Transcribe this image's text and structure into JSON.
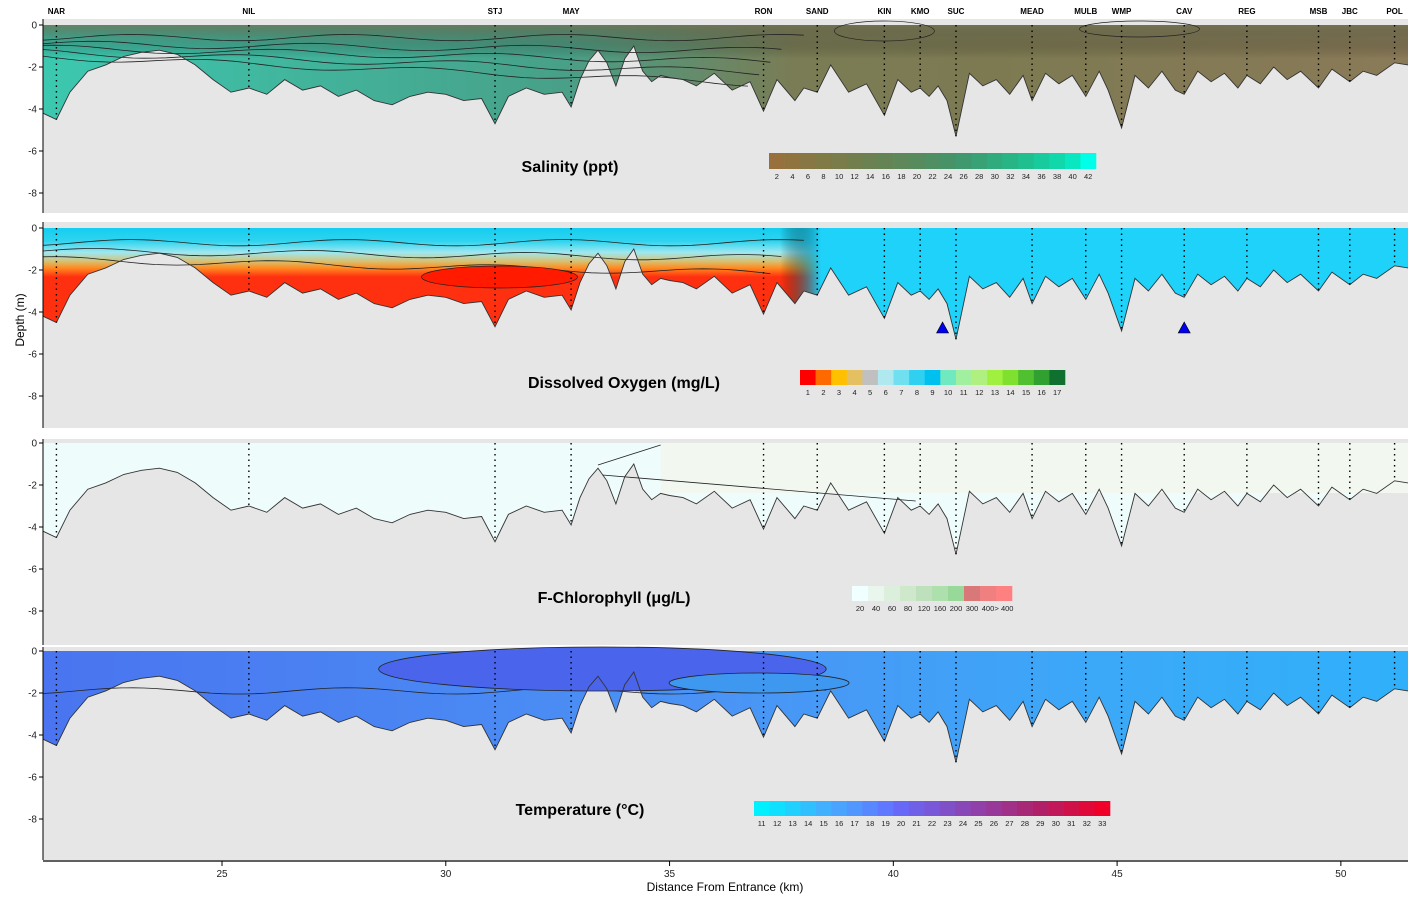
{
  "chart_data": {
    "type": "area",
    "description_free": true,
    "stations": [
      {
        "name": "NAR",
        "km": 21.3
      },
      {
        "name": "NIL",
        "km": 25.6
      },
      {
        "name": "STJ",
        "km": 31.1
      },
      {
        "name": "MAY",
        "km": 32.8
      },
      {
        "name": "RON",
        "km": 37.1
      },
      {
        "name": "SAND",
        "km": 38.3
      },
      {
        "name": "KIN",
        "km": 39.8
      },
      {
        "name": "KMO",
        "km": 40.6
      },
      {
        "name": "SUC",
        "km": 41.4
      },
      {
        "name": "MEAD",
        "km": 43.1
      },
      {
        "name": "MULB",
        "km": 44.3
      },
      {
        "name": "WMP",
        "km": 45.1
      },
      {
        "name": "CAV",
        "km": 46.5
      },
      {
        "name": "REG",
        "km": 47.9
      },
      {
        "name": "MSB",
        "km": 49.5
      },
      {
        "name": "JBC",
        "km": 50.2
      },
      {
        "name": "POL",
        "km": 51.2
      }
    ],
    "x_axis": {
      "label": "Distance From Entrance (km)",
      "range": [
        21,
        51.5
      ],
      "ticks": [
        25,
        30,
        35,
        40,
        45,
        50
      ]
    },
    "y_axis": {
      "label": "Depth (m)",
      "range": [
        -9.2,
        0
      ],
      "ticks": [
        "0",
        "-2",
        "-4",
        "-6",
        "-8"
      ]
    },
    "bottom_profile": {
      "x": [
        21.0,
        21.3,
        21.6,
        22.0,
        22.4,
        22.8,
        23.2,
        23.6,
        24.0,
        24.4,
        24.8,
        25.2,
        25.6,
        26.0,
        26.4,
        26.8,
        27.2,
        27.6,
        28.0,
        28.4,
        28.8,
        29.2,
        29.6,
        30.0,
        30.4,
        30.8,
        31.1,
        31.4,
        31.8,
        32.2,
        32.6,
        32.8,
        33.0,
        33.2,
        33.4,
        33.6,
        33.8,
        34.0,
        34.2,
        34.4,
        34.6,
        34.8,
        35.0,
        35.3,
        35.6,
        36.0,
        36.4,
        36.8,
        37.1,
        37.4,
        37.8,
        38.0,
        38.3,
        38.6,
        39.0,
        39.4,
        39.8,
        40.1,
        40.4,
        40.6,
        40.8,
        41.0,
        41.2,
        41.4,
        41.7,
        42.0,
        42.3,
        42.6,
        42.9,
        43.1,
        43.4,
        43.7,
        44.0,
        44.3,
        44.6,
        44.8,
        45.1,
        45.4,
        45.7,
        46.0,
        46.3,
        46.5,
        46.8,
        47.1,
        47.4,
        47.7,
        47.9,
        48.2,
        48.5,
        48.8,
        49.1,
        49.5,
        49.8,
        50.2,
        50.5,
        50.8,
        51.2,
        51.5
      ],
      "depth": [
        -4.2,
        -4.5,
        -3.2,
        -2.2,
        -1.9,
        -1.5,
        -1.3,
        -1.2,
        -1.4,
        -1.9,
        -2.6,
        -3.2,
        -3.0,
        -3.3,
        -2.6,
        -3.1,
        -2.9,
        -3.4,
        -3.1,
        -3.6,
        -3.8,
        -3.4,
        -3.2,
        -3.3,
        -3.6,
        -3.5,
        -4.7,
        -3.4,
        -3.0,
        -3.3,
        -3.2,
        -3.9,
        -2.6,
        -1.7,
        -1.2,
        -1.8,
        -2.9,
        -1.6,
        -1.0,
        -2.2,
        -2.7,
        -2.4,
        -2.5,
        -2.6,
        -2.9,
        -2.3,
        -3.1,
        -2.7,
        -4.1,
        -2.6,
        -3.6,
        -3.0,
        -3.2,
        -1.9,
        -3.2,
        -2.8,
        -4.3,
        -2.6,
        -3.2,
        -3.0,
        -3.4,
        -2.9,
        -3.6,
        -5.3,
        -2.3,
        -2.9,
        -2.6,
        -3.3,
        -2.4,
        -3.6,
        -2.3,
        -2.8,
        -2.4,
        -3.4,
        -2.2,
        -3.1,
        -4.9,
        -2.4,
        -3.0,
        -2.2,
        -3.1,
        -3.3,
        -2.2,
        -2.7,
        -2.3,
        -3.0,
        -2.4,
        -2.8,
        -2.0,
        -2.6,
        -2.2,
        -3.0,
        -2.1,
        -2.7,
        -2.2,
        -2.4,
        -1.8,
        -1.9
      ]
    },
    "panels": [
      {
        "title": "Salinity (ppt)",
        "legend_labels": [
          "2",
          "4",
          "6",
          "8",
          "10",
          "12",
          "14",
          "16",
          "18",
          "20",
          "22",
          "24",
          "26",
          "28",
          "30",
          "32",
          "34",
          "36",
          "38",
          "40",
          "42"
        ],
        "colors": [
          "#98703d",
          "#8f7440",
          "#877744",
          "#807a47",
          "#7a7c4a",
          "#737e4d",
          "#6c8151",
          "#658456",
          "#5e885a",
          "#578b5e",
          "#508e63",
          "#489268",
          "#40986e",
          "#38a176",
          "#30ab7e",
          "#28b586",
          "#20bf8f",
          "#18cb9c",
          "#10d8ab",
          "#08e7c0",
          "#00ffe8"
        ]
      },
      {
        "title": "Dissolved Oxygen (mg/L)",
        "legend_labels": [
          "1",
          "2",
          "3",
          "4",
          "5",
          "6",
          "7",
          "8",
          "9",
          "10",
          "11",
          "12",
          "13",
          "14",
          "15",
          "16",
          "17"
        ],
        "colors": [
          "#ff0000",
          "#ff6a00",
          "#ffc000",
          "#e4c060",
          "#c0c0c0",
          "#b0e8f0",
          "#70e0f0",
          "#30d0f0",
          "#00c0f0",
          "#70e8c0",
          "#a0f0a0",
          "#b0f080",
          "#a0f040",
          "#80e030",
          "#50c030",
          "#30a030",
          "#107030"
        ],
        "markers_km": [
          41.1,
          46.5
        ]
      },
      {
        "title": "F-Chlorophyll (μg/L)",
        "legend_labels": [
          "20",
          "40",
          "60",
          "80",
          "120",
          "160",
          "200",
          "300",
          "400",
          "> 400"
        ],
        "colors": [
          "#f0ffff",
          "#e8f6ee",
          "#dcefdc",
          "#cfe8cc",
          "#bee0bc",
          "#ade0ad",
          "#98d898",
          "#d87878",
          "#f08080",
          "#ff8080"
        ]
      },
      {
        "title": "Temperature (°C)",
        "legend_labels": [
          "11",
          "12",
          "13",
          "14",
          "15",
          "16",
          "17",
          "18",
          "19",
          "20",
          "21",
          "22",
          "23",
          "24",
          "25",
          "26",
          "27",
          "28",
          "29",
          "30",
          "31",
          "32",
          "33"
        ],
        "colors": [
          "#00f0ff",
          "#10e0ff",
          "#20d0ff",
          "#30c0ff",
          "#40b0ff",
          "#4aa4ff",
          "#5098ff",
          "#5888ff",
          "#6078ff",
          "#6868f8",
          "#7060e8",
          "#7858d8",
          "#8050c8",
          "#8848b8",
          "#9040a8",
          "#983898",
          "#a03088",
          "#a82878",
          "#b02068",
          "#c01858",
          "#d01048",
          "#e00838",
          "#f00028"
        ]
      }
    ]
  }
}
